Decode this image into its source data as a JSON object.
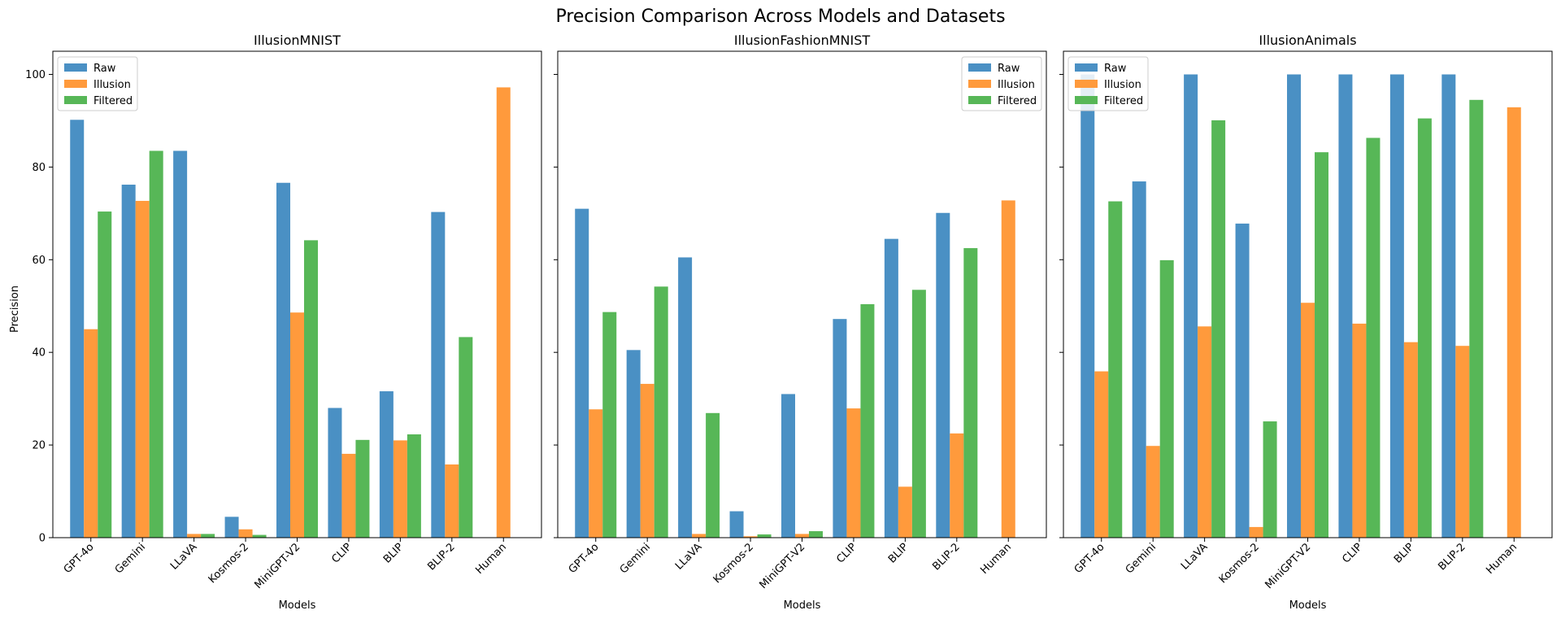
{
  "chart_data": {
    "type": "bar",
    "title": "Precision Comparison Across Models and Datasets",
    "ylabel": "Precision",
    "xlabel": "Models",
    "ylim": [
      0,
      105
    ],
    "yticks": [
      0,
      20,
      40,
      60,
      80,
      100
    ],
    "categories": [
      "GPT-4o",
      "Gemini",
      "LLaVA",
      "Kosmos-2",
      "MiniGPT-V2",
      "CLIP",
      "BLIP",
      "BLIP-2",
      "Human"
    ],
    "series_names": [
      "Raw",
      "Illusion",
      "Filtered"
    ],
    "colors": [
      "#4a90c4",
      "#ff9a3c",
      "#57b757"
    ],
    "panels": [
      {
        "title": "IllusionMNIST",
        "legend": "top-left",
        "series": [
          {
            "name": "Raw",
            "values": [
              90.2,
              76.2,
              83.5,
              4.5,
              76.6,
              28.0,
              31.6,
              70.3,
              null
            ]
          },
          {
            "name": "Illusion",
            "values": [
              45.0,
              72.7,
              0.8,
              1.8,
              48.6,
              18.1,
              21.0,
              15.8,
              97.2
            ]
          },
          {
            "name": "Filtered",
            "values": [
              70.4,
              83.5,
              0.8,
              0.6,
              64.2,
              21.1,
              22.3,
              43.3,
              null
            ]
          }
        ]
      },
      {
        "title": "IllusionFashionMNIST",
        "legend": "top-right",
        "series": [
          {
            "name": "Raw",
            "values": [
              71.0,
              40.5,
              60.5,
              5.7,
              31.0,
              47.2,
              64.5,
              70.1,
              null
            ]
          },
          {
            "name": "Illusion",
            "values": [
              27.7,
              33.2,
              0.8,
              0.3,
              0.8,
              27.9,
              11.0,
              22.5,
              72.8
            ]
          },
          {
            "name": "Filtered",
            "values": [
              48.7,
              54.2,
              26.9,
              0.7,
              1.4,
              50.4,
              53.5,
              62.5,
              null
            ]
          }
        ]
      },
      {
        "title": "IllusionAnimals",
        "legend": "top-left",
        "series": [
          {
            "name": "Raw",
            "values": [
              100,
              76.9,
              100,
              67.8,
              100,
              100,
              100,
              100,
              null
            ]
          },
          {
            "name": "Illusion",
            "values": [
              35.9,
              19.8,
              45.6,
              2.3,
              50.7,
              46.2,
              42.2,
              41.4,
              92.9
            ]
          },
          {
            "name": "Filtered",
            "values": [
              72.6,
              59.9,
              90.1,
              25.1,
              83.2,
              86.3,
              90.5,
              94.5,
              null
            ]
          }
        ]
      }
    ]
  }
}
